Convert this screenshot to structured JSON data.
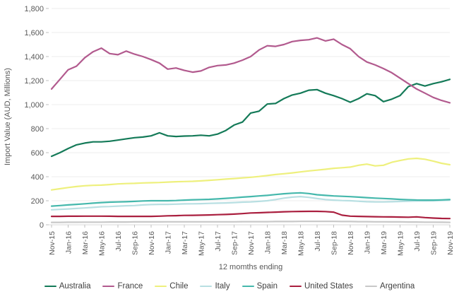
{
  "chart": {
    "y_axis_title": "Import Value (AUD, Millions)",
    "x_axis_title": "12 momths ending"
  },
  "chart_data": {
    "type": "line",
    "title": "",
    "xlabel": "12 momths ending",
    "ylabel": "Import Value (AUD, Millions)",
    "ylim": [
      0,
      1800
    ],
    "y_tick_step": 200,
    "x_tick_every": 2,
    "grid": "horizontal",
    "legend_position": "bottom",
    "x_labels": [
      "Nov-15",
      "Dec-15",
      "Jan-16",
      "Feb-16",
      "Mar-16",
      "Apr-16",
      "May-16",
      "Jun-16",
      "Jul-16",
      "Aug-16",
      "Sep-16",
      "Oct-16",
      "Nov-16",
      "Dec-16",
      "Jan-17",
      "Feb-17",
      "Mar-17",
      "Apr-17",
      "May-17",
      "Jun-17",
      "Jul-17",
      "Aug-17",
      "Sep-17",
      "Oct-17",
      "Nov-17",
      "Dec-17",
      "Jan-18",
      "Feb-18",
      "Mar-18",
      "Apr-18",
      "May-18",
      "Jun-18",
      "Jul-18",
      "Aug-18",
      "Sep-18",
      "Oct-18",
      "Nov-18",
      "Dec-18",
      "Jan-19",
      "Feb-19",
      "Mar-19",
      "Apr-19",
      "May-19",
      "Jun-19",
      "Jul-19",
      "Aug-19",
      "Sep-19",
      "Oct-19",
      "Nov-19"
    ],
    "series": [
      {
        "name": "Australia",
        "color": "#147a58",
        "values": [
          570,
          600,
          635,
          665,
          680,
          690,
          690,
          695,
          705,
          715,
          725,
          730,
          740,
          765,
          740,
          735,
          738,
          740,
          745,
          740,
          755,
          785,
          830,
          855,
          930,
          945,
          1005,
          1010,
          1050,
          1080,
          1095,
          1120,
          1125,
          1095,
          1075,
          1050,
          1020,
          1050,
          1090,
          1075,
          1025,
          1045,
          1075,
          1150,
          1175,
          1155,
          1175,
          1190,
          1210
        ]
      },
      {
        "name": "France",
        "color": "#b25a8e",
        "values": [
          1130,
          1210,
          1290,
          1320,
          1390,
          1440,
          1470,
          1425,
          1415,
          1445,
          1420,
          1400,
          1375,
          1345,
          1295,
          1305,
          1285,
          1270,
          1280,
          1310,
          1325,
          1330,
          1345,
          1370,
          1400,
          1455,
          1490,
          1485,
          1500,
          1525,
          1535,
          1540,
          1555,
          1530,
          1545,
          1500,
          1465,
          1400,
          1355,
          1330,
          1300,
          1265,
          1220,
          1175,
          1130,
          1095,
          1060,
          1035,
          1015
        ]
      },
      {
        "name": "Chile",
        "color": "#eef07d",
        "values": [
          290,
          300,
          310,
          318,
          325,
          328,
          330,
          335,
          340,
          343,
          345,
          348,
          350,
          352,
          355,
          358,
          360,
          362,
          365,
          370,
          375,
          380,
          385,
          390,
          395,
          402,
          410,
          418,
          425,
          432,
          440,
          448,
          455,
          462,
          470,
          475,
          480,
          495,
          505,
          490,
          495,
          520,
          535,
          548,
          553,
          545,
          530,
          512,
          500
        ]
      },
      {
        "name": "Italy",
        "color": "#b8dfe2",
        "values": [
          125,
          128,
          132,
          136,
          140,
          145,
          150,
          152,
          155,
          158,
          160,
          165,
          168,
          170,
          170,
          172,
          174,
          175,
          176,
          178,
          180,
          182,
          185,
          188,
          190,
          195,
          200,
          210,
          222,
          230,
          235,
          228,
          218,
          210,
          205,
          202,
          200,
          196,
          192,
          190,
          190,
          192,
          194,
          196,
          198,
          199,
          200,
          202,
          205
        ]
      },
      {
        "name": "Spain",
        "color": "#45b8ac",
        "values": [
          155,
          160,
          165,
          170,
          175,
          180,
          185,
          188,
          190,
          192,
          195,
          198,
          200,
          200,
          200,
          202,
          205,
          208,
          210,
          212,
          215,
          220,
          225,
          230,
          235,
          240,
          245,
          252,
          258,
          263,
          266,
          260,
          250,
          245,
          240,
          237,
          234,
          230,
          226,
          222,
          219,
          215,
          211,
          208,
          206,
          205,
          205,
          207,
          210
        ]
      },
      {
        "name": "United States",
        "color": "#aa1f3f",
        "values": [
          70,
          70,
          71,
          71,
          72,
          72,
          72,
          71,
          70,
          70,
          70,
          70,
          70,
          72,
          75,
          76,
          78,
          79,
          80,
          82,
          84,
          86,
          89,
          93,
          98,
          100,
          103,
          105,
          108,
          110,
          111,
          112,
          112,
          110,
          105,
          80,
          72,
          70,
          68,
          67,
          66,
          65,
          64,
          63,
          66,
          60,
          56,
          53,
          52
        ]
      },
      {
        "name": "Argentina",
        "color": "#c8c8c8",
        "values": [
          20,
          20,
          21,
          21,
          22,
          22,
          22,
          23,
          23,
          23,
          24,
          24,
          24,
          24,
          25,
          25,
          25,
          25,
          25,
          25,
          25,
          25,
          25,
          26,
          26,
          26,
          26,
          27,
          27,
          27,
          28,
          28,
          28,
          28,
          28,
          27,
          27,
          26,
          26,
          25,
          25,
          24,
          24,
          23,
          23,
          22,
          22,
          21,
          20
        ]
      }
    ],
    "style": {
      "grid_color": "#ededed",
      "baseline_color": "#d9d9d9",
      "tick_color": "#bfbfbf",
      "text_color": "#595959",
      "background": "#ffffff"
    }
  }
}
